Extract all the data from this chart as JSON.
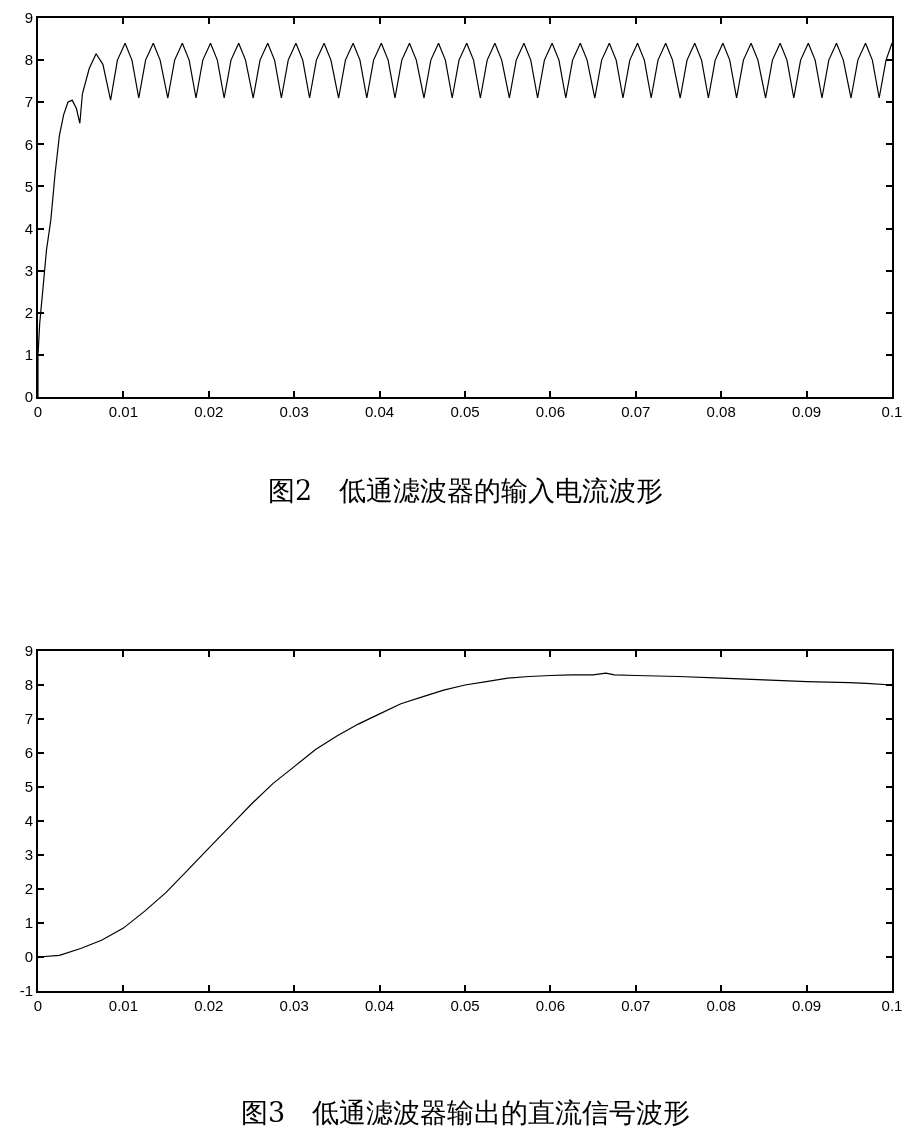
{
  "chart_data": [
    {
      "type": "line",
      "title": "图2　低通滤波器的输入电流波形",
      "xlim": [
        0,
        0.1
      ],
      "xticks": [
        0,
        0.01,
        0.02,
        0.03,
        0.04,
        0.05,
        0.06,
        0.07,
        0.08,
        0.09,
        0.1
      ],
      "ylim": [
        0,
        9
      ],
      "yticks": [
        0,
        1,
        2,
        3,
        4,
        5,
        6,
        7,
        8,
        9
      ],
      "series": [
        {
          "color": "#000000",
          "x": [
            0,
            0,
            0.0002,
            0.0005,
            0.001,
            0.0015,
            0.002,
            0.0025,
            0.003,
            0.0035,
            0.004,
            0.0045,
            0.0049,
            0.0052,
            0.006,
            0.0068,
            0.0076,
            0.0085,
            0.0093,
            0.0102,
            0.011,
            0.0118,
            0.0126,
            0.0135,
            0.0143,
            0.0152,
            0.016,
            0.0169,
            0.0177,
            0.0185,
            0.0193,
            0.0202,
            0.021,
            0.0218,
            0.0226,
            0.0235,
            0.0243,
            0.0252,
            0.026,
            0.0269,
            0.0277,
            0.0285,
            0.0293,
            0.0302,
            0.031,
            0.0318,
            0.0326,
            0.0335,
            0.0343,
            0.0352,
            0.036,
            0.0369,
            0.0377,
            0.0385,
            0.0393,
            0.0402,
            0.041,
            0.0418,
            0.0426,
            0.0435,
            0.0443,
            0.0452,
            0.046,
            0.0469,
            0.0477,
            0.0485,
            0.0493,
            0.0502,
            0.051,
            0.0518,
            0.0526,
            0.0535,
            0.0543,
            0.0552,
            0.056,
            0.0569,
            0.0577,
            0.0585,
            0.0593,
            0.0602,
            0.061,
            0.0618,
            0.0626,
            0.0635,
            0.0643,
            0.0652,
            0.066,
            0.0669,
            0.0677,
            0.0685,
            0.0693,
            0.0702,
            0.071,
            0.0718,
            0.0726,
            0.0735,
            0.0743,
            0.0752,
            0.076,
            0.0769,
            0.0777,
            0.0785,
            0.0793,
            0.0802,
            0.081,
            0.0818,
            0.0826,
            0.0835,
            0.0843,
            0.0852,
            0.086,
            0.0869,
            0.0877,
            0.0885,
            0.0893,
            0.0902,
            0.091,
            0.0918,
            0.0926,
            0.0935,
            0.0943,
            0.0952,
            0.096,
            0.0969,
            0.0977,
            0.0985,
            0.0993,
            0.1
          ],
          "values": [
            0,
            1.0,
            1.75,
            2.4,
            3.5,
            4.2,
            5.3,
            6.2,
            6.7,
            7.0,
            7.05,
            6.85,
            6.5,
            7.2,
            7.8,
            8.15,
            7.9,
            7.05,
            8.0,
            8.4,
            8.0,
            7.1,
            8.0,
            8.4,
            8.0,
            7.1,
            8.0,
            8.4,
            8.0,
            7.1,
            8.0,
            8.4,
            8.0,
            7.1,
            8.0,
            8.4,
            8.0,
            7.1,
            8.0,
            8.4,
            8.0,
            7.1,
            8.0,
            8.4,
            8.0,
            7.1,
            8.0,
            8.4,
            8.0,
            7.1,
            8.0,
            8.4,
            8.0,
            7.1,
            8.0,
            8.4,
            8.0,
            7.1,
            8.0,
            8.4,
            8.0,
            7.1,
            8.0,
            8.4,
            8.0,
            7.1,
            8.0,
            8.4,
            8.0,
            7.1,
            8.0,
            8.4,
            8.0,
            7.1,
            8.0,
            8.4,
            8.0,
            7.1,
            8.0,
            8.4,
            8.0,
            7.1,
            8.0,
            8.4,
            8.0,
            7.1,
            8.0,
            8.4,
            8.0,
            7.1,
            8.0,
            8.4,
            8.0,
            7.1,
            8.0,
            8.4,
            8.0,
            7.1,
            8.0,
            8.4,
            8.0,
            7.1,
            8.0,
            8.4,
            8.0,
            7.1,
            8.0,
            8.4,
            8.0,
            7.1,
            8.0,
            8.4,
            8.0,
            7.1,
            8.0,
            8.4,
            8.0,
            7.1,
            8.0,
            8.4,
            8.0,
            7.1,
            8.0,
            8.4,
            8.0,
            7.1,
            8.0,
            8.4
          ]
        }
      ]
    },
    {
      "type": "line",
      "title": "图3　低通滤波器输出的直流信号波形",
      "xlim": [
        0,
        0.1
      ],
      "xticks": [
        0,
        0.01,
        0.02,
        0.03,
        0.04,
        0.05,
        0.06,
        0.07,
        0.08,
        0.09,
        0.1
      ],
      "ylim": [
        -1,
        9
      ],
      "yticks": [
        -1,
        0,
        1,
        2,
        3,
        4,
        5,
        6,
        7,
        8,
        9
      ],
      "series": [
        {
          "color": "#000000",
          "x": [
            0,
            0.0025,
            0.005,
            0.0075,
            0.01,
            0.0125,
            0.015,
            0.0175,
            0.02,
            0.0225,
            0.025,
            0.0275,
            0.03,
            0.0325,
            0.035,
            0.0375,
            0.04,
            0.0425,
            0.045,
            0.0475,
            0.05,
            0.0525,
            0.055,
            0.0575,
            0.06,
            0.0625,
            0.065,
            0.0665,
            0.0675,
            0.07,
            0.075,
            0.08,
            0.085,
            0.09,
            0.095,
            0.097,
            0.1
          ],
          "values": [
            0,
            0.05,
            0.25,
            0.5,
            0.85,
            1.35,
            1.9,
            2.55,
            3.2,
            3.85,
            4.5,
            5.1,
            5.6,
            6.1,
            6.5,
            6.85,
            7.15,
            7.45,
            7.65,
            7.85,
            8.0,
            8.1,
            8.2,
            8.25,
            8.28,
            8.3,
            8.3,
            8.35,
            8.3,
            8.28,
            8.25,
            8.2,
            8.15,
            8.1,
            8.07,
            8.05,
            8.0
          ]
        }
      ]
    }
  ]
}
